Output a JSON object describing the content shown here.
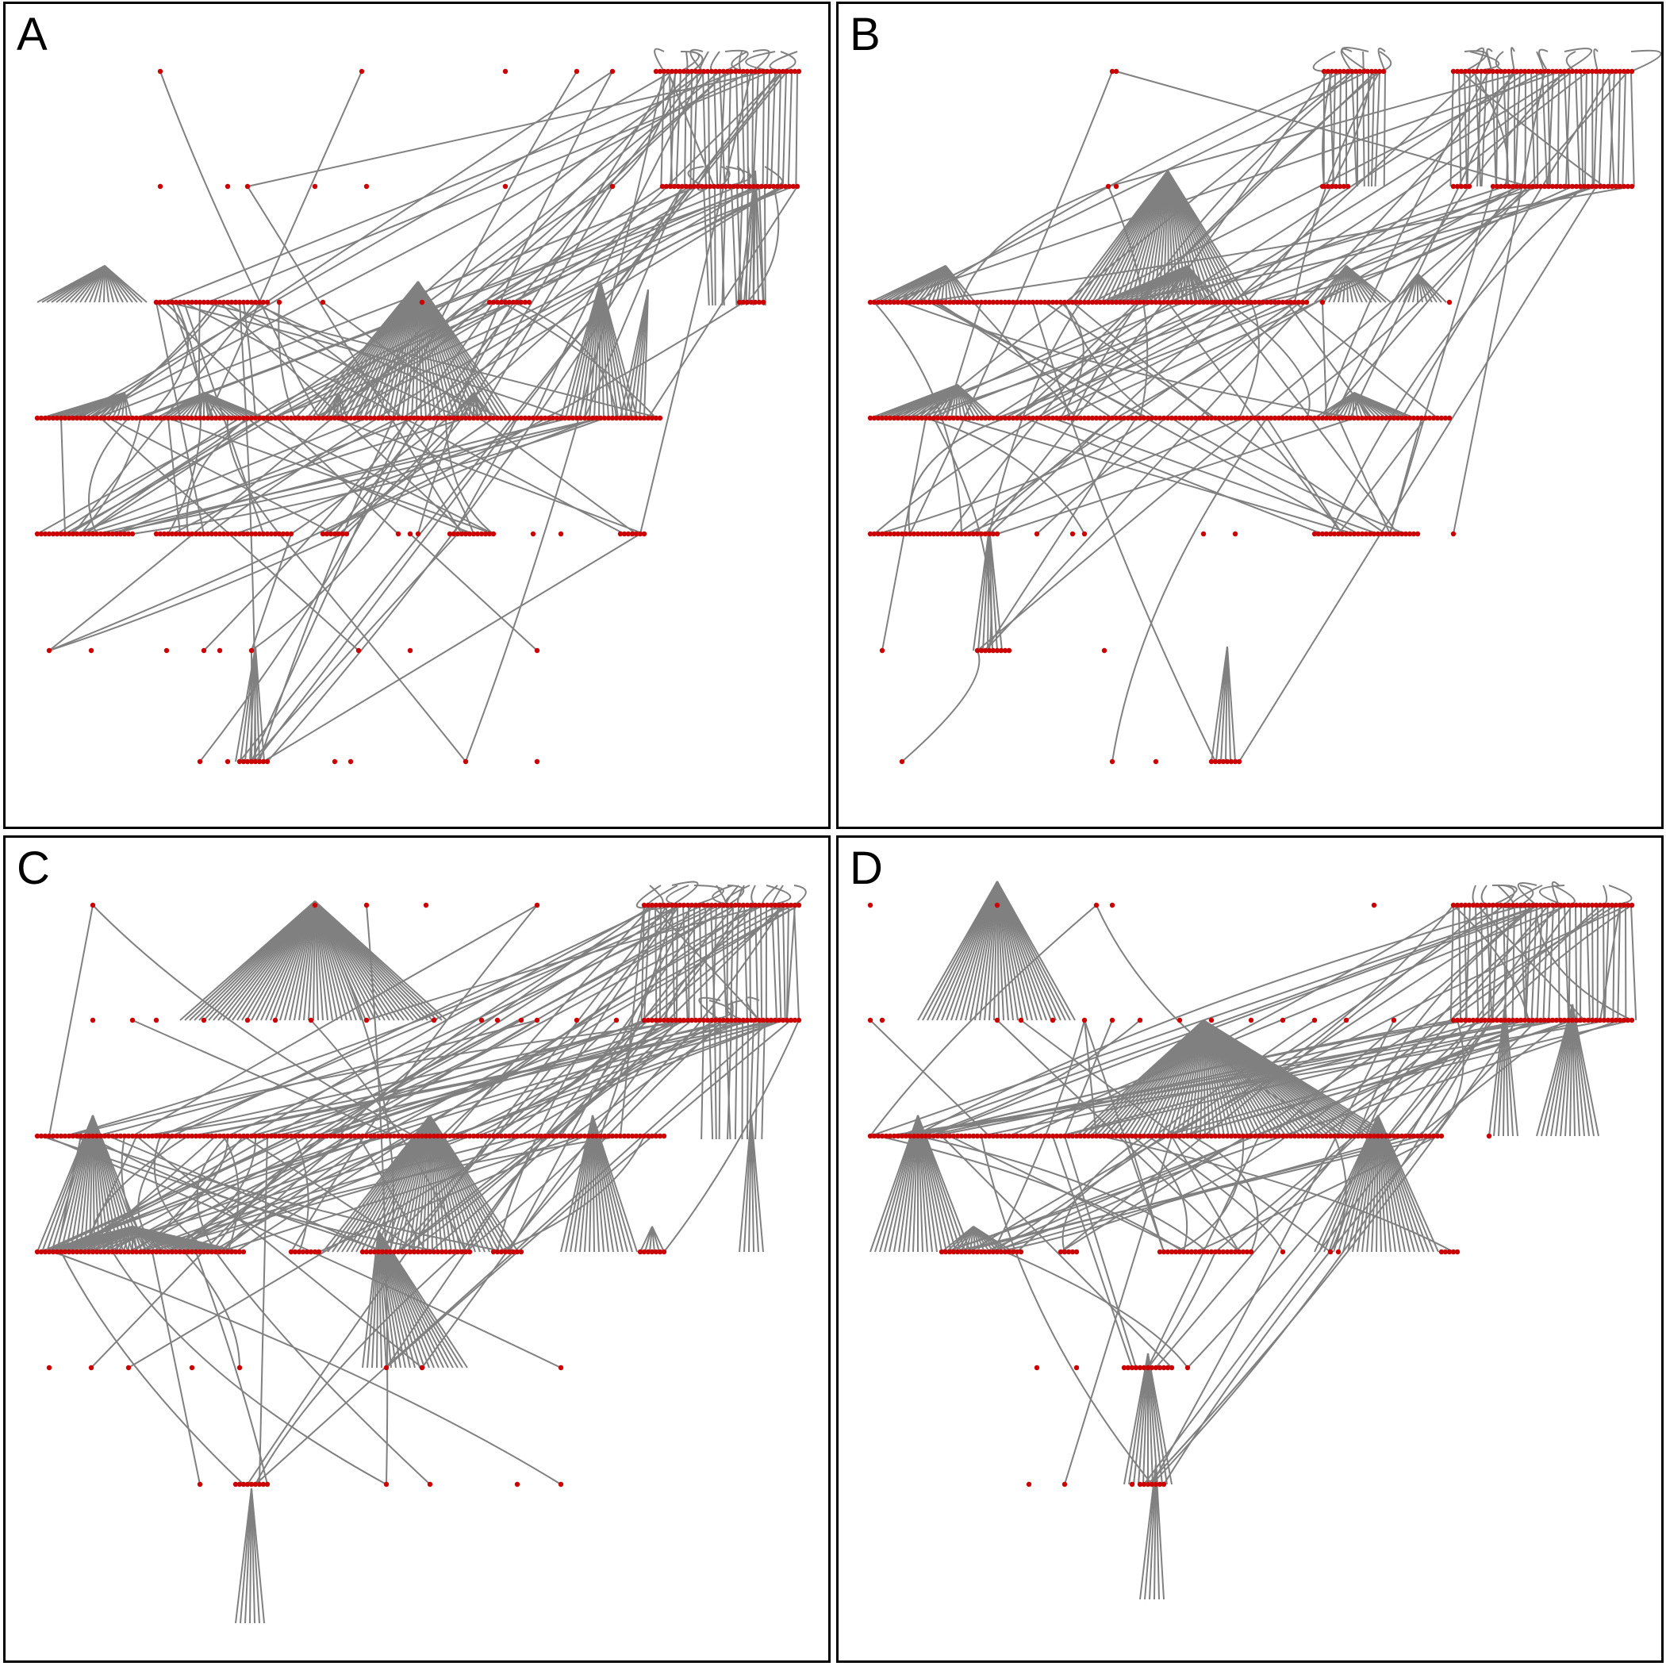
{
  "panels": [
    {
      "id": "A",
      "label": "A"
    },
    {
      "id": "B",
      "label": "B"
    },
    {
      "id": "C",
      "label": "C"
    },
    {
      "id": "D",
      "label": "D"
    }
  ],
  "colors": {
    "edge": "#808080",
    "node": "#cc0000",
    "border": "#000000",
    "background": "#ffffff"
  }
}
